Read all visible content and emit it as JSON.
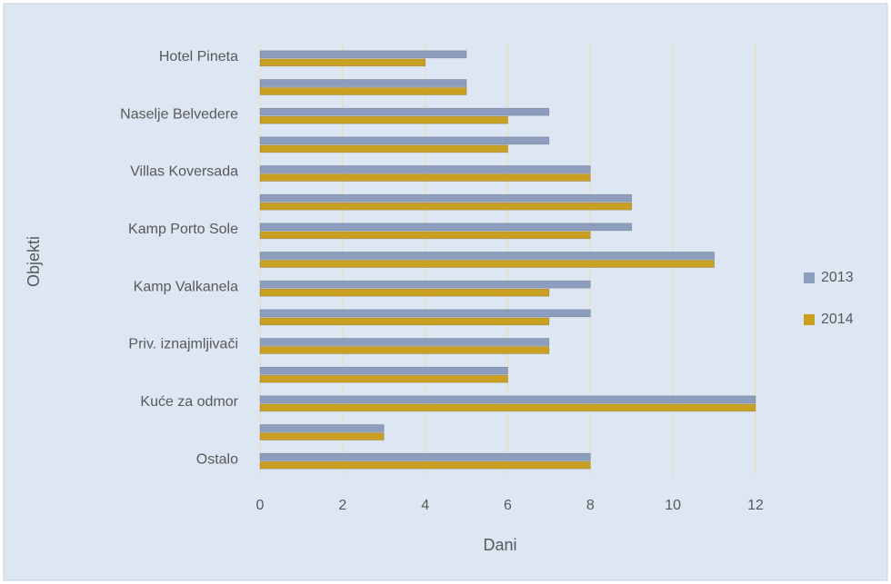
{
  "chart_data": {
    "type": "hbar",
    "categories": [
      "Hotel Pineta",
      null,
      "Naselje Belvedere",
      null,
      "Villas Koversada",
      null,
      "Kamp Porto Sole",
      null,
      "Kamp Valkanela",
      null,
      "Priv. iznajmljivači",
      null,
      "Kuće za odmor",
      null,
      "Ostalo"
    ],
    "series": [
      {
        "name": "2013",
        "color": "#8c9dbd",
        "values": [
          5,
          5,
          7,
          7,
          8,
          9,
          9,
          11,
          8,
          8,
          7,
          6,
          12,
          3,
          8
        ]
      },
      {
        "name": "2014",
        "color": "#c9a021",
        "values": [
          4,
          5,
          6,
          6,
          8,
          9,
          8,
          11,
          7,
          7,
          7,
          6,
          12,
          3,
          8
        ]
      }
    ],
    "xlim": [
      0,
      12
    ],
    "xticks": [
      0,
      2,
      4,
      6,
      8,
      10,
      12
    ],
    "xlabel": "Dani",
    "ylabel": "Objekti",
    "grid": true,
    "legend": "right"
  }
}
